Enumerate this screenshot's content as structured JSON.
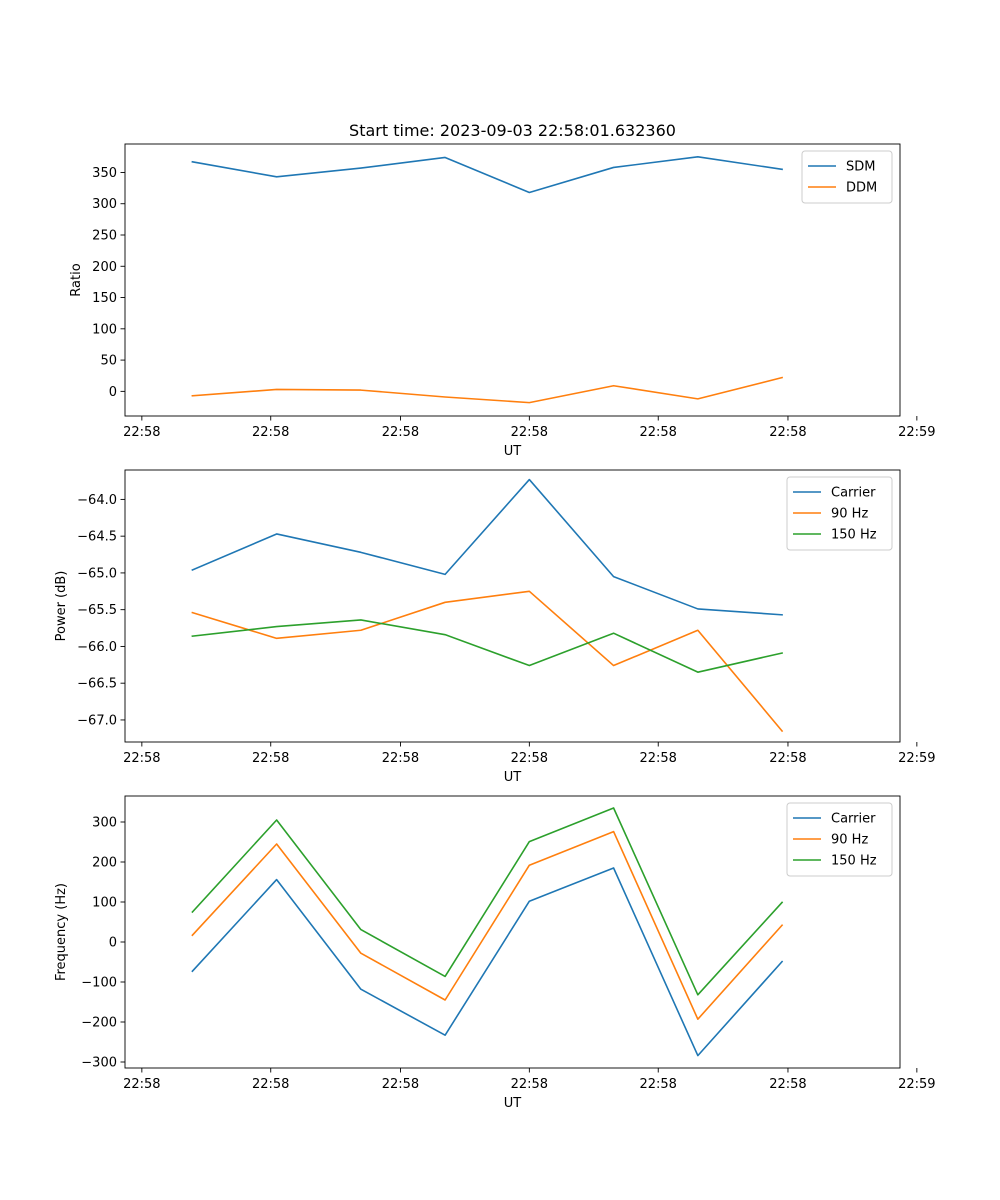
{
  "figure": {
    "title": "Start time: 2023-09-03 22:58:01.632360"
  },
  "colors": {
    "blue": "#1f77b4",
    "orange": "#ff7f0e",
    "green": "#2ca02c"
  },
  "chart_data": [
    {
      "type": "line",
      "title": "Start time: 2023-09-03 22:58:01.632360",
      "xlabel": "UT",
      "ylabel": "Ratio",
      "x": [
        1,
        2,
        3,
        4,
        5,
        6,
        7,
        8
      ],
      "xlim": [
        0.2,
        9.4
      ],
      "xticks": [
        0.4,
        1.93,
        3.47,
        5.0,
        6.53,
        8.07,
        9.6
      ],
      "xtick_labels": [
        "22:58",
        "22:58",
        "22:58",
        "22:58",
        "22:58",
        "22:58",
        "22:59"
      ],
      "ylim": [
        -39.4,
        395.5
      ],
      "yticks": [
        0,
        50,
        100,
        150,
        200,
        250,
        300,
        350
      ],
      "ytick_labels": [
        "0",
        "50",
        "100",
        "150",
        "200",
        "250",
        "300",
        "350"
      ],
      "legend_loc": "upper right",
      "series": [
        {
          "name": "SDM",
          "color": "#1f77b4",
          "values": [
            367,
            343,
            357,
            374,
            318,
            358,
            375,
            355
          ]
        },
        {
          "name": "DDM",
          "color": "#ff7f0e",
          "values": [
            -7,
            3,
            2,
            -9,
            -18,
            9,
            -12,
            22
          ]
        }
      ]
    },
    {
      "type": "line",
      "title": "",
      "xlabel": "UT",
      "ylabel": "Power (dB)",
      "x": [
        1,
        2,
        3,
        4,
        5,
        6,
        7,
        8
      ],
      "xlim": [
        0.2,
        9.4
      ],
      "xticks": [
        0.4,
        1.93,
        3.47,
        5.0,
        6.53,
        8.07,
        9.6
      ],
      "xtick_labels": [
        "22:58",
        "22:58",
        "22:58",
        "22:58",
        "22:58",
        "22:58",
        "22:59"
      ],
      "ylim": [
        -67.3,
        -63.6
      ],
      "yticks": [
        -67.0,
        -66.5,
        -66.0,
        -65.5,
        -65.0,
        -64.5,
        -64.0
      ],
      "ytick_labels": [
        "−67.0",
        "−66.5",
        "−66.0",
        "−65.5",
        "−65.0",
        "−64.5",
        "−64.0"
      ],
      "legend_loc": "upper right",
      "series": [
        {
          "name": "Carrier",
          "color": "#1f77b4",
          "values": [
            -64.96,
            -64.47,
            -64.72,
            -65.02,
            -63.73,
            -65.05,
            -65.49,
            -65.57
          ]
        },
        {
          "name": "90 Hz",
          "color": "#ff7f0e",
          "values": [
            -65.54,
            -65.89,
            -65.78,
            -65.4,
            -65.25,
            -66.26,
            -65.78,
            -67.15
          ]
        },
        {
          "name": "150 Hz",
          "color": "#2ca02c",
          "values": [
            -65.86,
            -65.73,
            -65.64,
            -65.84,
            -66.26,
            -65.82,
            -66.35,
            -66.09
          ]
        }
      ]
    },
    {
      "type": "line",
      "title": "",
      "xlabel": "UT",
      "ylabel": "Frequency (Hz)",
      "x": [
        1,
        2,
        3,
        4,
        5,
        6,
        7,
        8
      ],
      "xlim": [
        0.2,
        9.4
      ],
      "xticks": [
        0.4,
        1.93,
        3.47,
        5.0,
        6.53,
        8.07,
        9.6
      ],
      "xtick_labels": [
        "22:58",
        "22:58",
        "22:58",
        "22:58",
        "22:58",
        "22:58",
        "22:59"
      ],
      "ylim": [
        -315,
        365
      ],
      "yticks": [
        -300,
        -200,
        -100,
        0,
        100,
        200,
        300
      ],
      "ytick_labels": [
        "−300",
        "−200",
        "−100",
        "0",
        "100",
        "200",
        "300"
      ],
      "legend_loc": "upper right",
      "series": [
        {
          "name": "Carrier",
          "color": "#1f77b4",
          "values": [
            -73,
            156,
            -118,
            -233,
            102,
            185,
            -284,
            -49
          ]
        },
        {
          "name": "90 Hz",
          "color": "#ff7f0e",
          "values": [
            17,
            245,
            -28,
            -145,
            192,
            276,
            -193,
            42
          ]
        },
        {
          "name": "150 Hz",
          "color": "#2ca02c",
          "values": [
            75,
            305,
            31,
            -86,
            251,
            335,
            -132,
            99
          ]
        }
      ]
    }
  ]
}
